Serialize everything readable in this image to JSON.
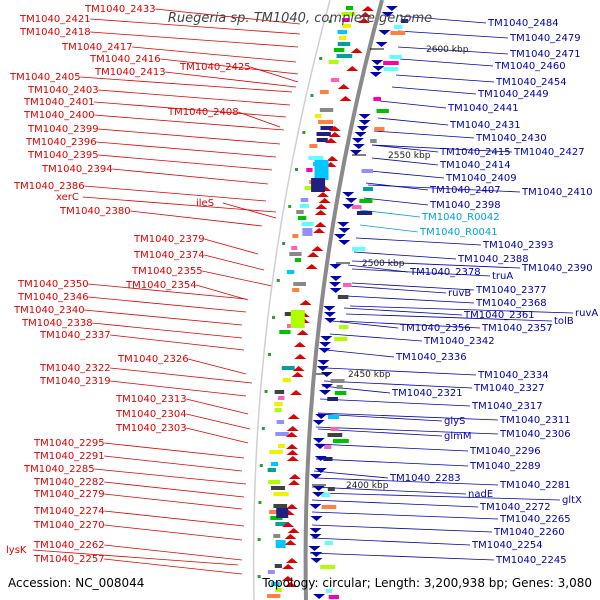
{
  "title": "Ruegeria sp. TM1040, complete genome",
  "footer": {
    "accession": "Accession: NC_008044",
    "summary": "Topology: circular; Length: 3,200,938 bp; Genes: 3,080"
  },
  "colors": {
    "forward_strand": "#e00000",
    "reverse_strand": "#0000b0",
    "rna": "#00a0e0",
    "backbone": "#8a8a8a",
    "marker": "#2aa02a"
  },
  "kbp_markers": [
    {
      "label": "2600 kbp"
    },
    {
      "label": "2550 kbp"
    },
    {
      "label": "2500 kbp"
    },
    {
      "label": "2450 kbp"
    },
    {
      "label": "2400 kbp"
    }
  ],
  "left_labels": [
    "TM1040_2433",
    "TM1040_2421",
    "TM1040_2418",
    "TM1040_2417",
    "TM1040_2416",
    "TM1040_2425",
    "TM1040_2413",
    "TM1040_2405",
    "TM1040_2403",
    "TM1040_2401",
    "TM1040_2408",
    "TM1040_2400",
    "TM1040_2399",
    "TM1040_2396",
    "TM1040_2395",
    "TM1040_2394",
    "TM1040_2386",
    "xerC",
    "ileS",
    "TM1040_2380",
    "TM1040_2379",
    "TM1040_2374",
    "TM1040_2355",
    "TM1040_2354",
    "TM1040_2350",
    "TM1040_2346",
    "TM1040_2340",
    "TM1040_2338",
    "TM1040_2337",
    "TM1040_2326",
    "TM1040_2322",
    "TM1040_2319",
    "TM1040_2313",
    "TM1040_2304",
    "TM1040_2303",
    "TM1040_2295",
    "TM1040_2291",
    "TM1040_2285",
    "TM1040_2282",
    "TM1040_2279",
    "TM1040_2274",
    "TM1040_2270",
    "TM1040_2262",
    "lysK",
    "TM1040_2257"
  ],
  "right_labels": [
    "TM1040_2484",
    "TM1040_2479",
    "TM1040_2471",
    "TM1040_2460",
    "TM1040_2454",
    "TM1040_2449",
    "TM1040_2441",
    "TM1040_2431",
    "TM1040_2430",
    "TM1040_2415",
    "TM1040_2427",
    "TM1040_2414",
    "TM1040_2409",
    "TM1040_2407",
    "TM1040_2410",
    "TM1040_2398",
    "TM1040_2393",
    "TM1040_2388",
    "TM1040_2378",
    "truA",
    "TM1040_2390",
    "TM1040_2377",
    "ruvB",
    "TM1040_2368",
    "TM1040_2361",
    "tolB",
    "ruvA",
    "TM1040_2356",
    "TM1040_2357",
    "TM1040_2342",
    "TM1040_2336",
    "TM1040_2334",
    "TM1040_2327",
    "TM1040_2321",
    "TM1040_2317",
    "glyS",
    "TM1040_2311",
    "glmM",
    "TM1040_2306",
    "TM1040_2296",
    "TM1040_2289",
    "TM1040_2283",
    "TM1040_2281",
    "nadE",
    "gltX",
    "TM1040_2272",
    "TM1040_2265",
    "TM1040_2260",
    "TM1040_2254",
    "TM1040_2245"
  ],
  "rna_labels": [
    "TM1040_R0042",
    "TM1040_R0041"
  ]
}
